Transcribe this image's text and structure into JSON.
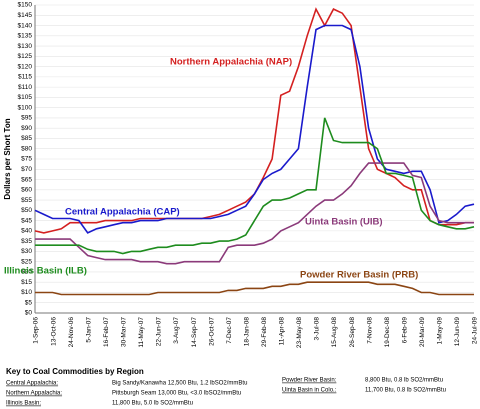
{
  "chart_data": {
    "type": "line",
    "y_label": "Dollars per Short Ton",
    "categories": [
      "1-Sep-06",
      null,
      "13-Oct-06",
      null,
      "24-Nov-06",
      null,
      "5-Jan-07",
      null,
      "16-Feb-07",
      null,
      "30-Mar-07",
      null,
      "11-May-07",
      null,
      "22-Jun-07",
      null,
      "3-Aug-07",
      null,
      "14-Sep-07",
      null,
      "26-Oct-07",
      null,
      "7-Dec-07",
      null,
      "18-Jan-08",
      null,
      "29-Feb-08",
      null,
      "11-Apr-08",
      null,
      "23-May-08",
      null,
      "3-Jul-08",
      null,
      "15-Aug-08",
      null,
      "26-Sep-08",
      null,
      "7-Nov-08",
      null,
      "19-Dec-08",
      null,
      "6-Feb-09",
      null,
      "20-Mar-09",
      null,
      "1-May-09",
      null,
      "12-Jun-09",
      null,
      "24-Jul-09"
    ],
    "series": [
      {
        "name": "Northern Appalachia (NAP)",
        "color": "#d42020",
        "values": [
          40,
          39,
          40,
          41,
          44,
          44,
          44,
          44,
          45,
          45,
          45,
          45,
          46,
          46,
          46,
          46,
          46,
          46,
          46,
          46,
          47,
          48,
          50,
          52,
          54,
          58,
          66,
          75,
          106,
          108,
          120,
          135,
          148,
          140,
          148,
          146,
          140,
          110,
          80,
          70,
          68,
          66,
          62,
          60,
          60,
          45,
          43,
          43,
          43,
          44,
          44
        ]
      },
      {
        "name": "Central Appalachia (CAP)",
        "color": "#1a1acc",
        "values": [
          50,
          48,
          46,
          46,
          46,
          45,
          39,
          41,
          42,
          43,
          44,
          44,
          45,
          45,
          45,
          46,
          46,
          46,
          46,
          46,
          46,
          47,
          48,
          50,
          52,
          58,
          65,
          68,
          70,
          75,
          80,
          110,
          138,
          140,
          140,
          140,
          138,
          120,
          90,
          75,
          70,
          69,
          68,
          69,
          69,
          60,
          44,
          45,
          48,
          52,
          53
        ]
      },
      {
        "name": "Uinta Basin (UIB)",
        "color": "#8b3a7a",
        "values": [
          36,
          36,
          36,
          36,
          36,
          32,
          28,
          27,
          26,
          26,
          26,
          26,
          25,
          25,
          25,
          24,
          24,
          25,
          25,
          25,
          25,
          25,
          32,
          33,
          33,
          33,
          34,
          36,
          40,
          42,
          44,
          48,
          52,
          55,
          55,
          58,
          62,
          68,
          73,
          73,
          73,
          73,
          73,
          67,
          66,
          52,
          45,
          44,
          44,
          44,
          44
        ]
      },
      {
        "name": "Illinois Basin (ILB)",
        "color": "#1e8c1e",
        "values": [
          33,
          33,
          33,
          33,
          33,
          33,
          31,
          30,
          30,
          30,
          29,
          30,
          30,
          31,
          32,
          32,
          33,
          33,
          33,
          34,
          34,
          35,
          35,
          36,
          38,
          45,
          52,
          55,
          55,
          56,
          58,
          60,
          60,
          95,
          84,
          83,
          83,
          83,
          83,
          80,
          68,
          68,
          67,
          66,
          50,
          45,
          43,
          42,
          41,
          41,
          42
        ]
      },
      {
        "name": "Powder River Basin (PRB)",
        "color": "#8b4513",
        "values": [
          10,
          10,
          10,
          9,
          9,
          9,
          9,
          9,
          9,
          9,
          9,
          9,
          9,
          9,
          10,
          10,
          10,
          10,
          10,
          10,
          10,
          10,
          11,
          11,
          12,
          12,
          12,
          13,
          13,
          14,
          14,
          15,
          15,
          15,
          15,
          15,
          15,
          15,
          15,
          14,
          14,
          14,
          13,
          12,
          10,
          10,
          9,
          9,
          9,
          9,
          9
        ]
      }
    ],
    "ylim": [
      0,
      150
    ],
    "yticks": [
      {
        "value": 0,
        "label": "$0"
      },
      {
        "value": 5,
        "label": "$5"
      },
      {
        "value": 10,
        "label": "$10"
      },
      {
        "value": 15,
        "label": "$15"
      },
      {
        "value": 20,
        "label": "$20"
      },
      {
        "value": 25,
        "label": "$25"
      },
      {
        "value": 30,
        "label": "$30"
      },
      {
        "value": 35,
        "label": "$35"
      },
      {
        "value": 40,
        "label": "$40"
      },
      {
        "value": 45,
        "label": "$45"
      },
      {
        "value": 50,
        "label": "$50"
      },
      {
        "value": 55,
        "label": "$55"
      },
      {
        "value": 60,
        "label": "$60"
      },
      {
        "value": 65,
        "label": "$65"
      },
      {
        "value": 70,
        "label": "$70"
      },
      {
        "value": 75,
        "label": "$75"
      },
      {
        "value": 80,
        "label": "$80"
      },
      {
        "value": 85,
        "label": "$85"
      },
      {
        "value": 90,
        "label": "$90"
      },
      {
        "value": 95,
        "label": "$95"
      },
      {
        "value": 100,
        "label": "$100"
      },
      {
        "value": 105,
        "label": "$105"
      },
      {
        "value": 110,
        "label": "$110"
      },
      {
        "value": 115,
        "label": "$115"
      },
      {
        "value": 120,
        "label": "$120"
      },
      {
        "value": 125,
        "label": "$125"
      },
      {
        "value": 130,
        "label": "$130"
      },
      {
        "value": 135,
        "label": "$135"
      },
      {
        "value": 140,
        "label": "$140"
      },
      {
        "value": 145,
        "label": "$145"
      },
      {
        "value": 150,
        "label": "$150"
      }
    ],
    "grid": true,
    "key": {
      "title": "Key to Coal Commodities by Region",
      "left": [
        [
          "Central Appalachia:",
          "Big Sandy/Kanawha 12,500 Btu, 1.2 lbSO2/mmBtu"
        ],
        [
          "Northern Appalachia:",
          "Pittsburgh Seam 13,000 Btu, <3.0 lbSO2/mmBtu"
        ],
        [
          "Illinois Basin:",
          "11,800 Btu, 5.0 lb SO2/mmBtu"
        ]
      ],
      "right": [
        [
          "Powder River Basin:",
          "8,800 Btu, 0.8 lb SO2/mmBtu"
        ],
        [
          "Uinta Basin in Colo.:",
          "11,700 Btu, 0.8 lb SO2/mmBtu"
        ]
      ]
    }
  }
}
